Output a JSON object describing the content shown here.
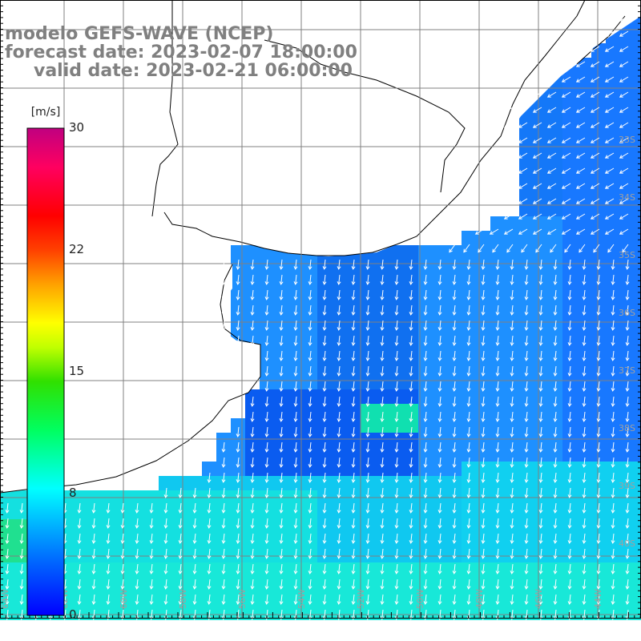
{
  "title": {
    "line1": "modelo GEFS-WAVE (NCEP)",
    "line2": "forecast date: 2023-02-07 18:00:00",
    "line3": "valid date: 2023-02-21 06:00:00"
  },
  "colorbar": {
    "unit": "[m/s]",
    "ticks": [
      "30",
      "22",
      "15",
      "8",
      "0"
    ],
    "tick_values": [
      30,
      22,
      15,
      8,
      0
    ],
    "range": [
      0,
      30
    ],
    "colors": [
      "#0000ff",
      "#0080ff",
      "#00c0ff",
      "#00ffff",
      "#00ff80",
      "#00e000",
      "#80ff00",
      "#ffff00",
      "#ffc000",
      "#ff8000",
      "#ff2000",
      "#ff0060",
      "#c00080"
    ]
  },
  "map": {
    "lat_labels": [
      "33S",
      "34S",
      "35S",
      "36S",
      "37S",
      "38S",
      "39S",
      "40S"
    ],
    "lon_labels": [
      "64W",
      "62W",
      "60W",
      "58W",
      "56W",
      "54W",
      "52W",
      "50W",
      "48W",
      "46W",
      "44W"
    ],
    "land_color": "#ffffff",
    "grid_color": "#808080",
    "arrow_color": "#ffffff"
  }
}
